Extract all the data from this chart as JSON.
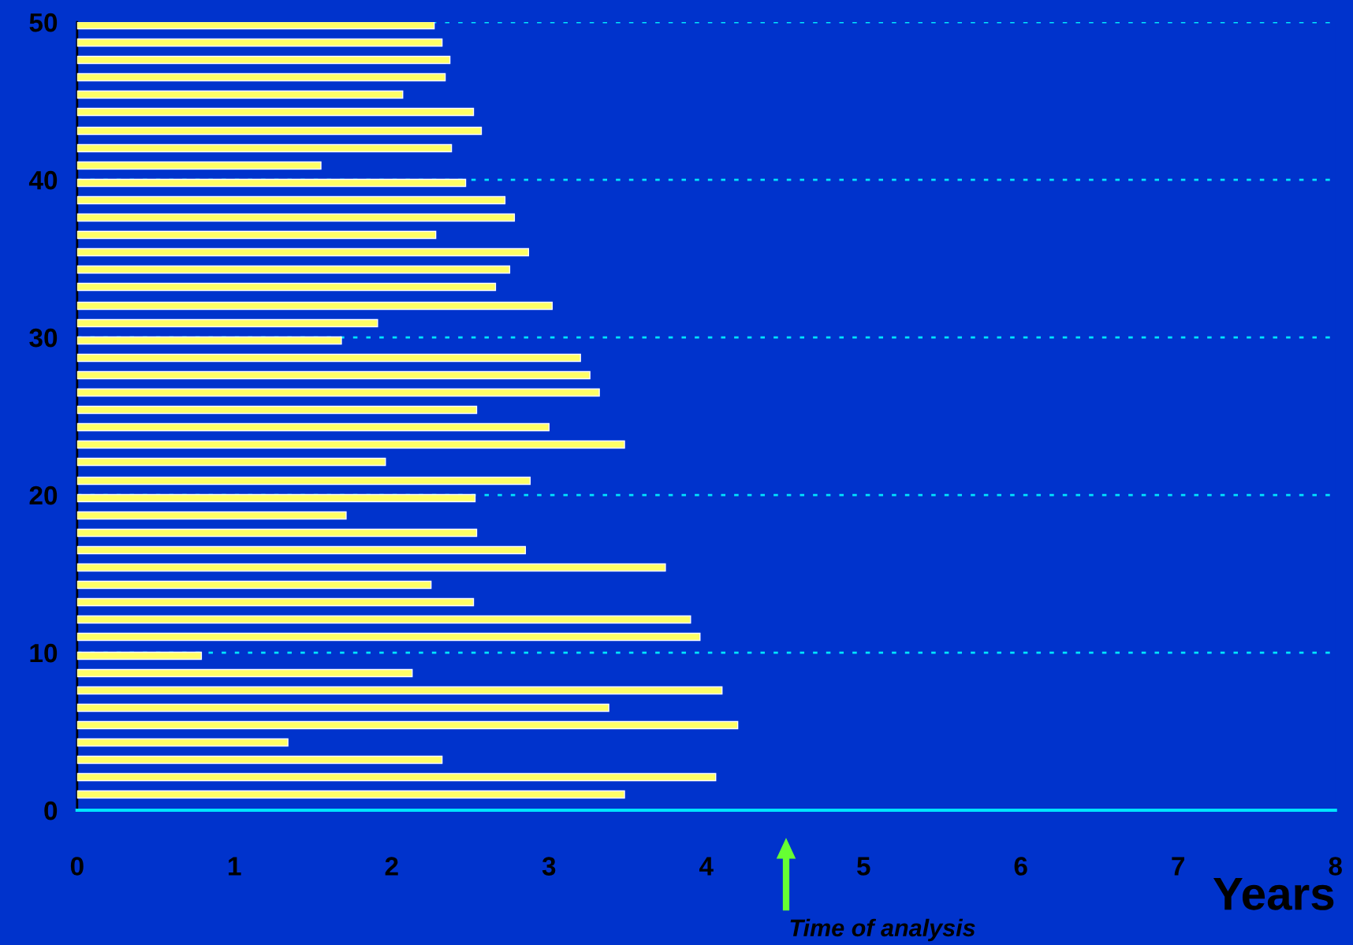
{
  "chart_data": {
    "type": "bar",
    "orientation": "horizontal",
    "xlabel": "Years",
    "x": [
      1.0,
      2.1,
      3.2,
      4.3,
      5.4,
      6.5,
      7.6,
      8.7,
      9.8,
      11.0,
      12.1,
      13.2,
      14.3,
      15.4,
      16.5,
      17.6,
      18.7,
      19.8,
      20.9,
      22.1,
      23.2,
      24.3,
      25.4,
      26.5,
      27.6,
      28.7,
      29.8,
      30.9,
      32.0,
      33.2,
      34.3,
      35.4,
      36.5,
      37.6,
      38.7,
      39.8,
      40.9,
      42.0,
      43.1,
      44.3,
      45.4,
      46.5,
      47.6,
      48.7,
      49.8
    ],
    "series": [
      {
        "color": "#ffff66",
        "values": [
          3.48,
          4.06,
          2.32,
          1.34,
          4.2,
          3.38,
          4.1,
          2.13,
          0.79,
          3.96,
          3.9,
          2.52,
          2.25,
          3.74,
          2.85,
          2.54,
          1.71,
          2.53,
          2.88,
          1.96,
          3.48,
          3.0,
          2.54,
          3.32,
          3.26,
          3.2,
          1.68,
          1.91,
          3.02,
          2.66,
          2.75,
          2.87,
          2.28,
          2.78,
          2.72,
          2.47,
          1.55,
          2.38,
          2.57,
          2.52,
          2.07,
          2.34,
          2.37,
          2.32,
          2.27
        ]
      }
    ],
    "xlim": [
      0,
      8
    ],
    "xticks": [
      0,
      1,
      2,
      3,
      4,
      5,
      6,
      7,
      8
    ],
    "ylim": [
      0,
      50
    ],
    "yticks": [
      0,
      10,
      20,
      30,
      40,
      50
    ],
    "grid": "y",
    "annotations": [
      "Time of analysis"
    ]
  }
}
